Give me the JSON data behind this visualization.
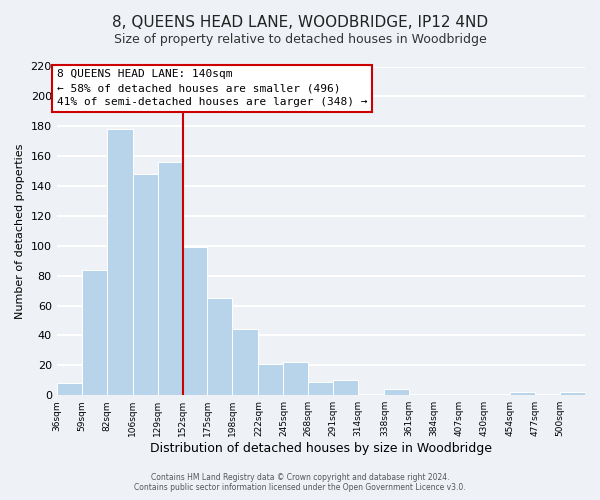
{
  "title": "8, QUEENS HEAD LANE, WOODBRIDGE, IP12 4ND",
  "subtitle": "Size of property relative to detached houses in Woodbridge",
  "xlabel": "Distribution of detached houses by size in Woodbridge",
  "ylabel": "Number of detached properties",
  "footer_line1": "Contains HM Land Registry data © Crown copyright and database right 2024.",
  "footer_line2": "Contains public sector information licensed under the Open Government Licence v3.0.",
  "bar_labels": [
    "36sqm",
    "59sqm",
    "82sqm",
    "106sqm",
    "129sqm",
    "152sqm",
    "175sqm",
    "198sqm",
    "222sqm",
    "245sqm",
    "268sqm",
    "291sqm",
    "314sqm",
    "338sqm",
    "361sqm",
    "384sqm",
    "407sqm",
    "430sqm",
    "454sqm",
    "477sqm",
    "500sqm"
  ],
  "bar_values": [
    8,
    84,
    178,
    148,
    156,
    99,
    65,
    44,
    21,
    22,
    9,
    10,
    0,
    4,
    0,
    0,
    0,
    0,
    2,
    0,
    2
  ],
  "bar_color": "#b8d4ea",
  "bar_edge_color": "#ffffff",
  "property_line_color": "#cc0000",
  "annotation_text_line1": "8 QUEENS HEAD LANE: 140sqm",
  "annotation_text_line2": "← 58% of detached houses are smaller (496)",
  "annotation_text_line3": "41% of semi-detached houses are larger (348) →",
  "annotation_box_facecolor": "#ffffff",
  "annotation_box_edgecolor": "#cc0000",
  "ylim": [
    0,
    220
  ],
  "yticks": [
    0,
    20,
    40,
    60,
    80,
    100,
    120,
    140,
    160,
    180,
    200,
    220
  ],
  "bin_edges": [
    36,
    59,
    82,
    106,
    129,
    152,
    175,
    198,
    222,
    245,
    268,
    291,
    314,
    338,
    361,
    384,
    407,
    430,
    454,
    477,
    500
  ],
  "background_color": "#eef2f7",
  "grid_color": "#ffffff",
  "title_fontsize": 11,
  "subtitle_fontsize": 9,
  "xlabel_fontsize": 9,
  "ylabel_fontsize": 8,
  "annotation_fontsize": 8
}
